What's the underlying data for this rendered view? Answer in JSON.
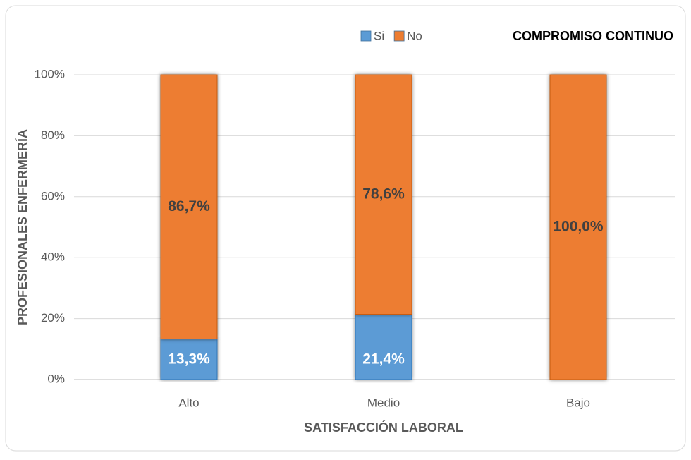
{
  "chart_data": {
    "type": "stacked-bar",
    "title": "COMPROMISO CONTINUO",
    "x_label": "SATISFACCIÓN LABORAL",
    "y_label": "PROFESIONALES ENFERMERÍA",
    "categories": [
      "Alto",
      "Medio",
      "Bajo"
    ],
    "series": [
      {
        "name": "Si",
        "color": "#5b9bd5",
        "values": [
          13.3,
          21.4,
          0
        ],
        "value_labels": [
          "13,3%",
          "21,4%",
          null
        ]
      },
      {
        "name": "No",
        "color": "#ed7d31",
        "values": [
          86.7,
          78.6,
          100
        ],
        "value_labels": [
          "86,7%",
          "78,6%",
          "100,0%"
        ]
      }
    ],
    "ylim": [
      0,
      100
    ],
    "yticks": [
      {
        "value": 0,
        "label": "0%"
      },
      {
        "value": 20,
        "label": "20%"
      },
      {
        "value": 40,
        "label": "40%"
      },
      {
        "value": 60,
        "label": "60%"
      },
      {
        "value": 80,
        "label": "80%"
      },
      {
        "value": 100,
        "label": "100%"
      }
    ],
    "grid": true,
    "legend": "top"
  }
}
